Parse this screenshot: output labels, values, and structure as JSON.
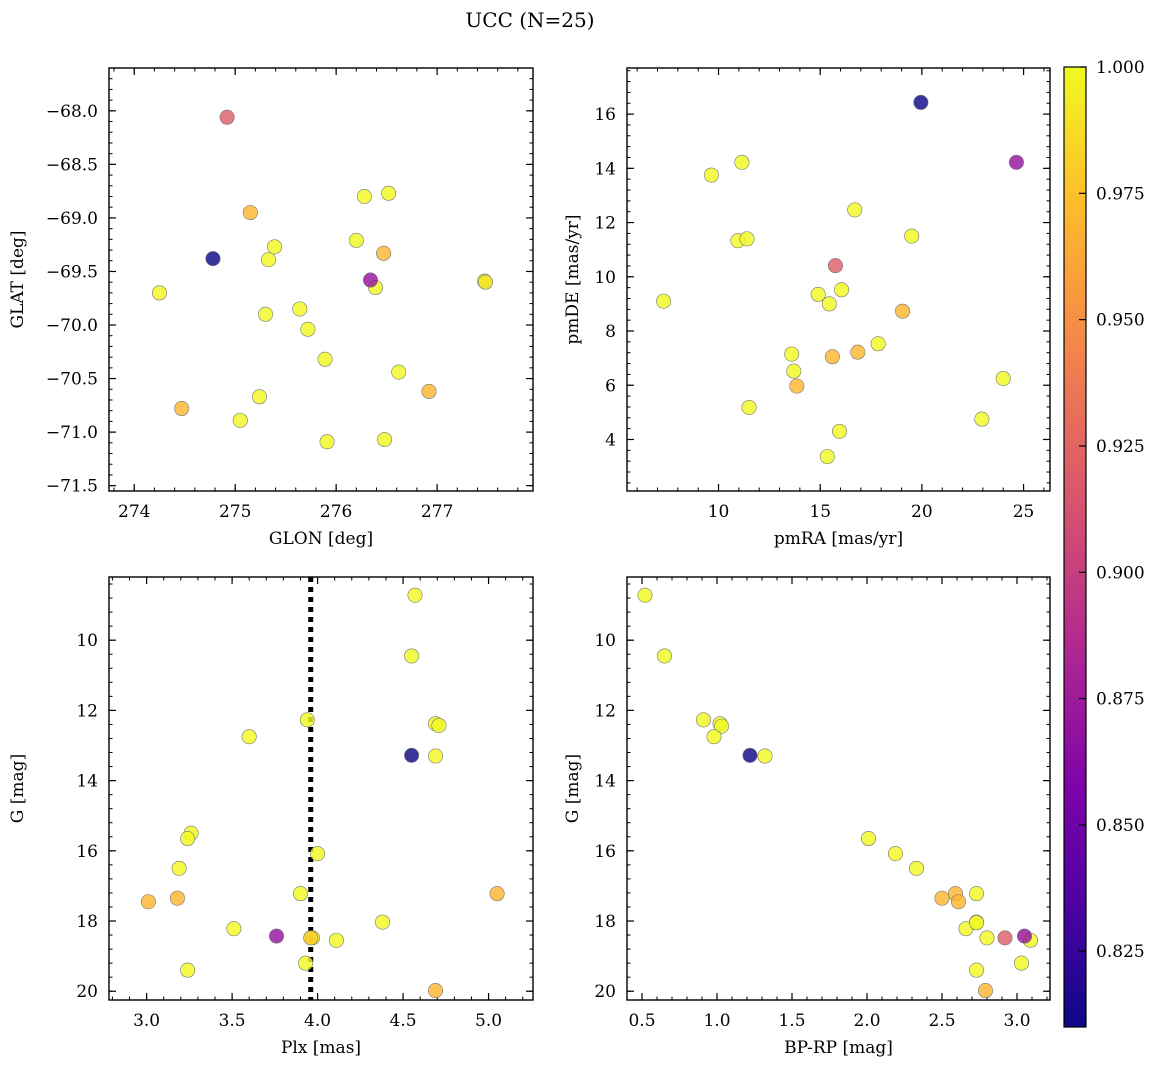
{
  "title": "UCC (N=25)",
  "colormap": {
    "name": "plasma",
    "range": [
      0.81,
      1.0
    ],
    "ticks": [
      0.825,
      0.85,
      0.875,
      0.9,
      0.925,
      0.95,
      0.975,
      1.0
    ],
    "tick_labels": [
      "0.825",
      "0.850",
      "0.875",
      "0.900",
      "0.925",
      "0.950",
      "0.975",
      "1.000"
    ]
  },
  "chart_data": [
    {
      "type": "scatter",
      "xlabel": "GLON [deg]",
      "ylabel": "GLAT [deg]",
      "xlim": [
        273.75,
        277.95
      ],
      "ylim": [
        -71.55,
        -67.6
      ],
      "x_ticks": [
        274,
        275,
        276,
        277
      ],
      "x_tick_labels": [
        "274",
        "275",
        "276",
        "277"
      ],
      "y_ticks": [
        -68.0,
        -68.5,
        -69.0,
        -69.5,
        -70.0,
        -70.5,
        -71.0,
        -71.5
      ],
      "y_tick_labels": [
        "−68.0",
        "−68.5",
        "−69.0",
        "−69.5",
        "−70.0",
        "−70.5",
        "−71.0",
        "−71.5"
      ],
      "points": [
        {
          "x": 274.92,
          "y": -68.06,
          "c": 0.92
        },
        {
          "x": 274.78,
          "y": -69.38,
          "c": 0.81
        },
        {
          "x": 276.34,
          "y": -69.58,
          "c": 0.87
        },
        {
          "x": 275.15,
          "y": -68.95,
          "c": 0.97
        },
        {
          "x": 276.47,
          "y": -69.33,
          "c": 0.97
        },
        {
          "x": 274.47,
          "y": -70.78,
          "c": 0.97
        },
        {
          "x": 276.92,
          "y": -70.62,
          "c": 0.97
        },
        {
          "x": 274.25,
          "y": -69.7,
          "c": 1.0
        },
        {
          "x": 275.33,
          "y": -69.39,
          "c": 1.0
        },
        {
          "x": 275.39,
          "y": -69.27,
          "c": 1.0
        },
        {
          "x": 275.3,
          "y": -69.9,
          "c": 1.0
        },
        {
          "x": 275.64,
          "y": -69.85,
          "c": 1.0
        },
        {
          "x": 275.72,
          "y": -70.04,
          "c": 1.0
        },
        {
          "x": 275.89,
          "y": -70.32,
          "c": 1.0
        },
        {
          "x": 276.2,
          "y": -69.21,
          "c": 1.0
        },
        {
          "x": 276.28,
          "y": -68.8,
          "c": 1.0
        },
        {
          "x": 276.52,
          "y": -68.77,
          "c": 1.0
        },
        {
          "x": 276.39,
          "y": -69.65,
          "c": 1.0
        },
        {
          "x": 276.62,
          "y": -70.44,
          "c": 1.0
        },
        {
          "x": 275.24,
          "y": -70.67,
          "c": 1.0
        },
        {
          "x": 275.05,
          "y": -70.89,
          "c": 1.0
        },
        {
          "x": 275.91,
          "y": -71.09,
          "c": 1.0
        },
        {
          "x": 276.48,
          "y": -71.07,
          "c": 1.0
        },
        {
          "x": 277.47,
          "y": -69.59,
          "c": 1.0
        },
        {
          "x": 277.48,
          "y": -69.6,
          "c": 0.99
        }
      ]
    },
    {
      "type": "scatter",
      "xlabel": "pmRA [mas/yr]",
      "ylabel": "pmDE [mas/yr]",
      "xlim": [
        5.5,
        26.3
      ],
      "ylim": [
        2.1,
        17.7
      ],
      "x_ticks": [
        10,
        15,
        20,
        25
      ],
      "x_tick_labels": [
        "10",
        "15",
        "20",
        "25"
      ],
      "y_ticks": [
        4,
        6,
        8,
        10,
        12,
        14,
        16
      ],
      "y_tick_labels": [
        "4",
        "6",
        "8",
        "10",
        "12",
        "14",
        "16"
      ],
      "points": [
        {
          "x": 19.95,
          "y": 16.43,
          "c": 0.81
        },
        {
          "x": 24.65,
          "y": 14.22,
          "c": 0.87
        },
        {
          "x": 15.75,
          "y": 10.41,
          "c": 0.92
        },
        {
          "x": 19.05,
          "y": 8.73,
          "c": 0.97
        },
        {
          "x": 15.6,
          "y": 7.05,
          "c": 0.97
        },
        {
          "x": 16.85,
          "y": 7.22,
          "c": 0.97
        },
        {
          "x": 13.85,
          "y": 5.97,
          "c": 0.97
        },
        {
          "x": 7.3,
          "y": 9.1,
          "c": 1.0
        },
        {
          "x": 9.65,
          "y": 13.75,
          "c": 1.0
        },
        {
          "x": 11.15,
          "y": 14.22,
          "c": 1.0
        },
        {
          "x": 10.95,
          "y": 11.33,
          "c": 1.0
        },
        {
          "x": 11.4,
          "y": 11.4,
          "c": 1.0
        },
        {
          "x": 16.7,
          "y": 12.47,
          "c": 1.0
        },
        {
          "x": 19.5,
          "y": 11.5,
          "c": 1.0
        },
        {
          "x": 14.9,
          "y": 9.35,
          "c": 1.0
        },
        {
          "x": 16.05,
          "y": 9.52,
          "c": 1.0
        },
        {
          "x": 15.45,
          "y": 9.0,
          "c": 1.0
        },
        {
          "x": 13.6,
          "y": 7.15,
          "c": 1.0
        },
        {
          "x": 17.85,
          "y": 7.53,
          "c": 1.0
        },
        {
          "x": 13.7,
          "y": 6.52,
          "c": 1.0
        },
        {
          "x": 11.5,
          "y": 5.18,
          "c": 1.0
        },
        {
          "x": 15.95,
          "y": 4.3,
          "c": 1.0
        },
        {
          "x": 15.35,
          "y": 3.37,
          "c": 1.0
        },
        {
          "x": 24.0,
          "y": 6.25,
          "c": 1.0
        },
        {
          "x": 22.95,
          "y": 4.75,
          "c": 1.0
        }
      ]
    },
    {
      "type": "scatter",
      "xlabel": "Plx [mas]",
      "ylabel": "G [mag]",
      "xlim": [
        2.78,
        5.26
      ],
      "ylim": [
        20.25,
        8.2
      ],
      "x_ticks": [
        3.0,
        3.5,
        4.0,
        4.5,
        5.0
      ],
      "x_tick_labels": [
        "3.0",
        "3.5",
        "4.0",
        "4.5",
        "5.0"
      ],
      "y_ticks": [
        10,
        12,
        14,
        16,
        18,
        20
      ],
      "y_tick_labels": [
        "10",
        "12",
        "14",
        "16",
        "18",
        "20"
      ],
      "vline": {
        "x": 3.96,
        "style": "dotted"
      },
      "points": [
        {
          "x": 4.55,
          "y": 13.28,
          "c": 0.81
        },
        {
          "x": 3.76,
          "y": 18.43,
          "c": 0.87
        },
        {
          "x": 3.01,
          "y": 17.45,
          "c": 0.97
        },
        {
          "x": 3.18,
          "y": 17.35,
          "c": 0.97
        },
        {
          "x": 5.05,
          "y": 17.22,
          "c": 0.97
        },
        {
          "x": 4.69,
          "y": 19.98,
          "c": 0.97
        },
        {
          "x": 3.96,
          "y": 18.48,
          "c": 0.98
        },
        {
          "x": 4.57,
          "y": 8.72,
          "c": 1.0
        },
        {
          "x": 4.55,
          "y": 10.45,
          "c": 1.0
        },
        {
          "x": 3.94,
          "y": 12.27,
          "c": 1.0
        },
        {
          "x": 4.69,
          "y": 12.38,
          "c": 1.0
        },
        {
          "x": 4.71,
          "y": 12.43,
          "c": 1.0
        },
        {
          "x": 3.6,
          "y": 12.75,
          "c": 1.0
        },
        {
          "x": 4.69,
          "y": 13.3,
          "c": 1.0
        },
        {
          "x": 3.26,
          "y": 15.5,
          "c": 1.0
        },
        {
          "x": 3.24,
          "y": 15.65,
          "c": 1.0
        },
        {
          "x": 4.0,
          "y": 16.08,
          "c": 1.0
        },
        {
          "x": 3.19,
          "y": 16.5,
          "c": 1.0
        },
        {
          "x": 3.9,
          "y": 17.22,
          "c": 1.0
        },
        {
          "x": 3.51,
          "y": 18.22,
          "c": 1.0
        },
        {
          "x": 4.38,
          "y": 18.03,
          "c": 1.0
        },
        {
          "x": 4.11,
          "y": 18.55,
          "c": 1.0
        },
        {
          "x": 3.93,
          "y": 19.2,
          "c": 1.0
        },
        {
          "x": 3.24,
          "y": 19.4,
          "c": 1.0
        },
        {
          "x": 3.97,
          "y": 18.48,
          "c": 1.0
        }
      ]
    },
    {
      "type": "scatter",
      "xlabel": "BP-RP [mag]",
      "ylabel": "G [mag]",
      "xlim": [
        0.4,
        3.22
      ],
      "ylim": [
        20.25,
        8.2
      ],
      "x_ticks": [
        0.5,
        1.0,
        1.5,
        2.0,
        2.5,
        3.0
      ],
      "x_tick_labels": [
        "0.5",
        "1.0",
        "1.5",
        "2.0",
        "2.5",
        "3.0"
      ],
      "y_ticks": [
        10,
        12,
        14,
        16,
        18,
        20
      ],
      "y_tick_labels": [
        "10",
        "12",
        "14",
        "16",
        "18",
        "20"
      ],
      "points": [
        {
          "x": 1.22,
          "y": 13.28,
          "c": 0.81
        },
        {
          "x": 3.05,
          "y": 18.43,
          "c": 0.87
        },
        {
          "x": 2.92,
          "y": 18.48,
          "c": 0.92
        },
        {
          "x": 2.5,
          "y": 17.35,
          "c": 0.97
        },
        {
          "x": 2.59,
          "y": 17.22,
          "c": 0.97
        },
        {
          "x": 2.61,
          "y": 17.45,
          "c": 0.97
        },
        {
          "x": 2.79,
          "y": 19.98,
          "c": 0.97
        },
        {
          "x": 0.52,
          "y": 8.72,
          "c": 1.0
        },
        {
          "x": 0.65,
          "y": 10.45,
          "c": 1.0
        },
        {
          "x": 0.91,
          "y": 12.27,
          "c": 1.0
        },
        {
          "x": 1.02,
          "y": 12.38,
          "c": 1.0
        },
        {
          "x": 1.03,
          "y": 12.45,
          "c": 1.0
        },
        {
          "x": 0.98,
          "y": 12.75,
          "c": 1.0
        },
        {
          "x": 1.32,
          "y": 13.3,
          "c": 1.0
        },
        {
          "x": 2.01,
          "y": 15.65,
          "c": 1.0
        },
        {
          "x": 2.19,
          "y": 16.08,
          "c": 1.0
        },
        {
          "x": 2.33,
          "y": 16.5,
          "c": 1.0
        },
        {
          "x": 2.73,
          "y": 17.22,
          "c": 1.0
        },
        {
          "x": 2.73,
          "y": 18.03,
          "c": 1.0
        },
        {
          "x": 2.66,
          "y": 18.22,
          "c": 1.0
        },
        {
          "x": 2.8,
          "y": 18.48,
          "c": 1.0
        },
        {
          "x": 3.09,
          "y": 18.55,
          "c": 1.0
        },
        {
          "x": 3.03,
          "y": 19.2,
          "c": 1.0
        },
        {
          "x": 2.73,
          "y": 19.4,
          "c": 1.0
        },
        {
          "x": 2.73,
          "y": 18.05,
          "c": 1.0
        }
      ]
    }
  ]
}
